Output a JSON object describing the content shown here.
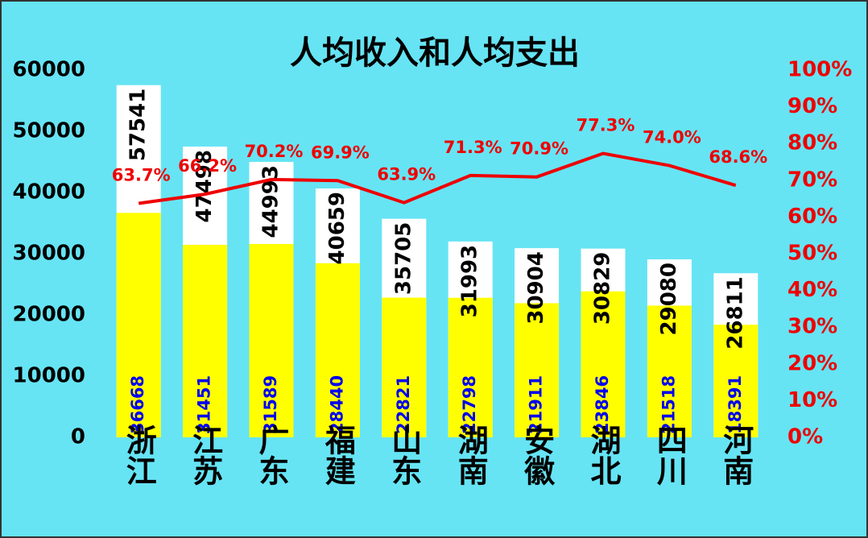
{
  "chart_data": {
    "type": "bar_line",
    "title": "人均收入和人均支出",
    "categories": [
      "浙江",
      "江苏",
      "广东",
      "福建",
      "山东",
      "湖南",
      "安徽",
      "湖北",
      "四川",
      "河南"
    ],
    "series": [
      {
        "color": "#ffffff",
        "label_color": "#000000",
        "values": [
          57541,
          47498,
          44993,
          40659,
          35705,
          31993,
          30904,
          30829,
          29080,
          26811
        ]
      },
      {
        "color": "#ffff00",
        "label_color": "#0000ee",
        "values": [
          36668,
          31451,
          31589,
          28440,
          22821,
          22798,
          21911,
          23846,
          21518,
          18391
        ]
      },
      {
        "color": "#ee0000",
        "axis": "y2",
        "values": [
          63.7,
          66.2,
          70.2,
          69.9,
          63.9,
          71.3,
          70.9,
          77.3,
          74.0,
          68.6
        ],
        "value_labels": [
          "63.7%",
          "66.2%",
          "70.2%",
          "69.9%",
          "63.9%",
          "71.3%",
          "70.9%",
          "77.3%",
          "74.0%",
          "68.6%"
        ]
      }
    ],
    "ylim": [
      0,
      60000
    ],
    "yticks": [
      0,
      10000,
      20000,
      30000,
      40000,
      50000,
      60000
    ],
    "y2lim": [
      0,
      100
    ],
    "y2ticks": [
      {
        "value": 0,
        "label": "0%"
      },
      {
        "value": 10,
        "label": "10%"
      },
      {
        "value": 20,
        "label": "20%"
      },
      {
        "value": 30,
        "label": "30%"
      },
      {
        "value": 40,
        "label": "40%"
      },
      {
        "value": 50,
        "label": "50%"
      },
      {
        "value": 60,
        "label": "60%"
      },
      {
        "value": 70,
        "label": "70%"
      },
      {
        "value": 80,
        "label": "80%"
      },
      {
        "value": 90,
        "label": "90%"
      },
      {
        "value": 100,
        "label": "100%"
      }
    ],
    "grid": false
  }
}
